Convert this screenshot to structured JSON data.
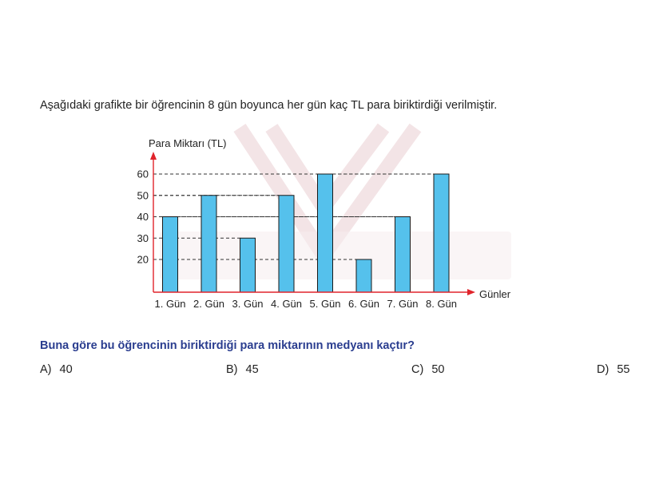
{
  "intro_text": "Aşağıdaki grafikte bir öğrencinin 8 gün boyunca her gün kaç TL para biriktirdiği verilmiştir.",
  "question_text": "Buna göre bu öğrencinin biriktirdiği para miktarının medyanı kaçtır?",
  "options": [
    {
      "label": "A)",
      "value": "40"
    },
    {
      "label": "B)",
      "value": "45"
    },
    {
      "label": "C)",
      "value": "50"
    },
    {
      "label": "D)",
      "value": "55"
    }
  ],
  "colors": {
    "bar_fill": "#55c1ec",
    "bar_stroke": "#1a1a1a",
    "axis": "#e0242b",
    "question": "#2a3d8f",
    "watermark": "#f3e4e6"
  },
  "chart_data": {
    "type": "bar",
    "ylabel": "Para Miktarı (TL)",
    "xlabel": "Günler",
    "categories": [
      "1. Gün",
      "2. Gün",
      "3. Gün",
      "4. Gün",
      "5. Gün",
      "6. Gün",
      "7. Gün",
      "8. Gün"
    ],
    "values": [
      40,
      50,
      30,
      50,
      60,
      20,
      40,
      60
    ],
    "yticks": [
      20,
      30,
      40,
      50,
      60
    ],
    "ylim": [
      0,
      60
    ],
    "gridlines": "dashed, from y-axis to bar at each value"
  }
}
